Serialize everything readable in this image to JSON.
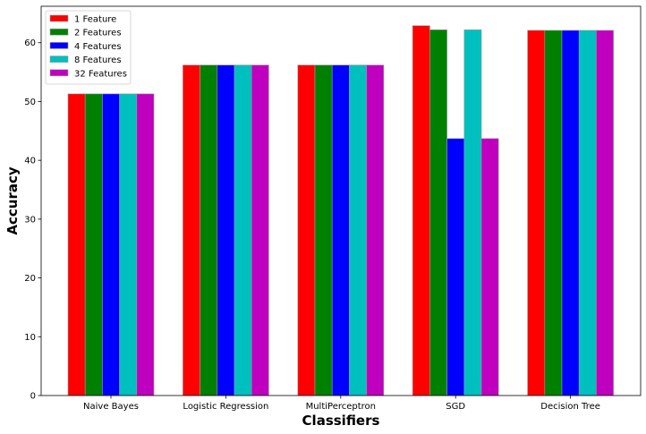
{
  "chart_data": {
    "type": "bar",
    "title": "",
    "xlabel": "Classifiers",
    "ylabel": "Accuracy",
    "categories": [
      "Naive Bayes",
      "Logistic Regression",
      "MultiPerceptron",
      "SGD",
      "Decision Tree"
    ],
    "series": [
      {
        "name": "1 Feature",
        "color": "#ff0000",
        "values": [
          51.3,
          56.2,
          56.2,
          62.9,
          62.1
        ]
      },
      {
        "name": "2 Features",
        "color": "#008000",
        "values": [
          51.3,
          56.2,
          56.2,
          62.2,
          62.1
        ]
      },
      {
        "name": "4 Features",
        "color": "#0000ff",
        "values": [
          51.3,
          56.2,
          56.2,
          43.7,
          62.1
        ]
      },
      {
        "name": "8 Features",
        "color": "#00bfbf",
        "values": [
          51.3,
          56.2,
          56.2,
          62.2,
          62.1
        ]
      },
      {
        "name": "32 Features",
        "color": "#bf00bf",
        "values": [
          51.3,
          56.2,
          56.2,
          43.7,
          62.1
        ]
      }
    ],
    "ylim": [
      0,
      66.2
    ],
    "yticks": [
      0,
      10,
      20,
      30,
      40,
      50,
      60
    ],
    "grid": false,
    "legend_position": "top-left"
  }
}
